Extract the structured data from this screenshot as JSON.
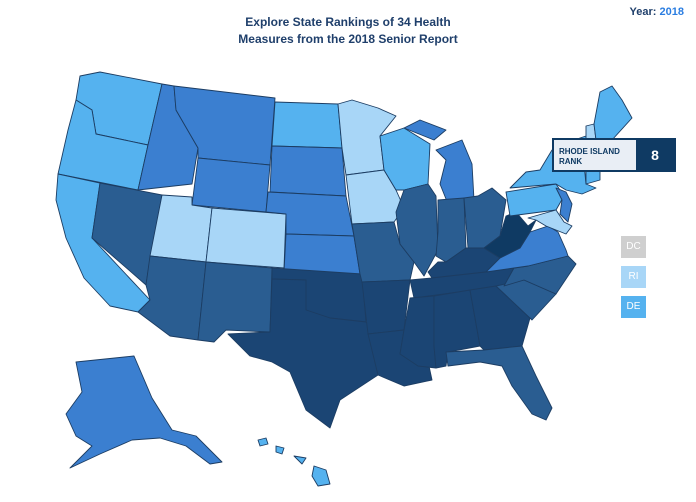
{
  "header": {
    "year_label": "Year:",
    "year_value": "2018"
  },
  "title": {
    "line1": "Explore State Rankings of 34 Health",
    "line2": "Measures from the 2018 Senior Report"
  },
  "legend_colors": {
    "tier1": "#a8d6f7",
    "tier2": "#55b2ef",
    "tier3": "#3b7fd0",
    "tier4": "#2a5d91",
    "tier5": "#1b4574",
    "tier6": "#0f3a63",
    "nodata": "#cfcfcf"
  },
  "tooltip": {
    "label": "RHODE ISLAND RANK",
    "rank": "8"
  },
  "small_states": [
    {
      "abbr": "DC",
      "color": "#cfcfcf"
    },
    {
      "abbr": "RI",
      "color": "#a8d6f7"
    },
    {
      "abbr": "DE",
      "color": "#55b2ef"
    }
  ],
  "states": [
    {
      "name": "Washington",
      "tier": "tier2"
    },
    {
      "name": "Oregon",
      "tier": "tier2"
    },
    {
      "name": "California",
      "tier": "tier2"
    },
    {
      "name": "Nevada",
      "tier": "tier4"
    },
    {
      "name": "Idaho",
      "tier": "tier3"
    },
    {
      "name": "Montana",
      "tier": "tier3"
    },
    {
      "name": "Wyoming",
      "tier": "tier3"
    },
    {
      "name": "Utah",
      "tier": "tier1"
    },
    {
      "name": "Colorado",
      "tier": "tier1"
    },
    {
      "name": "Arizona",
      "tier": "tier4"
    },
    {
      "name": "New Mexico",
      "tier": "tier4"
    },
    {
      "name": "North Dakota",
      "tier": "tier2"
    },
    {
      "name": "South Dakota",
      "tier": "tier3"
    },
    {
      "name": "Nebraska",
      "tier": "tier3"
    },
    {
      "name": "Kansas",
      "tier": "tier3"
    },
    {
      "name": "Oklahoma",
      "tier": "tier5"
    },
    {
      "name": "Texas",
      "tier": "tier5"
    },
    {
      "name": "Minnesota",
      "tier": "tier1"
    },
    {
      "name": "Iowa",
      "tier": "tier1"
    },
    {
      "name": "Missouri",
      "tier": "tier4"
    },
    {
      "name": "Arkansas",
      "tier": "tier5"
    },
    {
      "name": "Louisiana",
      "tier": "tier5"
    },
    {
      "name": "Wisconsin",
      "tier": "tier2"
    },
    {
      "name": "Illinois",
      "tier": "tier4"
    },
    {
      "name": "Michigan",
      "tier": "tier3"
    },
    {
      "name": "Indiana",
      "tier": "tier4"
    },
    {
      "name": "Ohio",
      "tier": "tier4"
    },
    {
      "name": "Kentucky",
      "tier": "tier5"
    },
    {
      "name": "Tennessee",
      "tier": "tier5"
    },
    {
      "name": "Mississippi",
      "tier": "tier5"
    },
    {
      "name": "Alabama",
      "tier": "tier5"
    },
    {
      "name": "Georgia",
      "tier": "tier5"
    },
    {
      "name": "Florida",
      "tier": "tier4"
    },
    {
      "name": "South Carolina",
      "tier": "tier4"
    },
    {
      "name": "North Carolina",
      "tier": "tier4"
    },
    {
      "name": "Virginia",
      "tier": "tier3"
    },
    {
      "name": "West Virginia",
      "tier": "tier6"
    },
    {
      "name": "Pennsylvania",
      "tier": "tier2"
    },
    {
      "name": "New York",
      "tier": "tier2"
    },
    {
      "name": "Maryland",
      "tier": "tier1"
    },
    {
      "name": "New Jersey",
      "tier": "tier3"
    },
    {
      "name": "Vermont",
      "tier": "tier2"
    },
    {
      "name": "New Hampshire",
      "tier": "tier1"
    },
    {
      "name": "Maine",
      "tier": "tier2"
    },
    {
      "name": "Massachusetts",
      "tier": "tier2"
    },
    {
      "name": "Connecticut",
      "tier": "tier2"
    },
    {
      "name": "Alaska",
      "tier": "tier3"
    },
    {
      "name": "Hawaii",
      "tier": "tier2"
    }
  ]
}
